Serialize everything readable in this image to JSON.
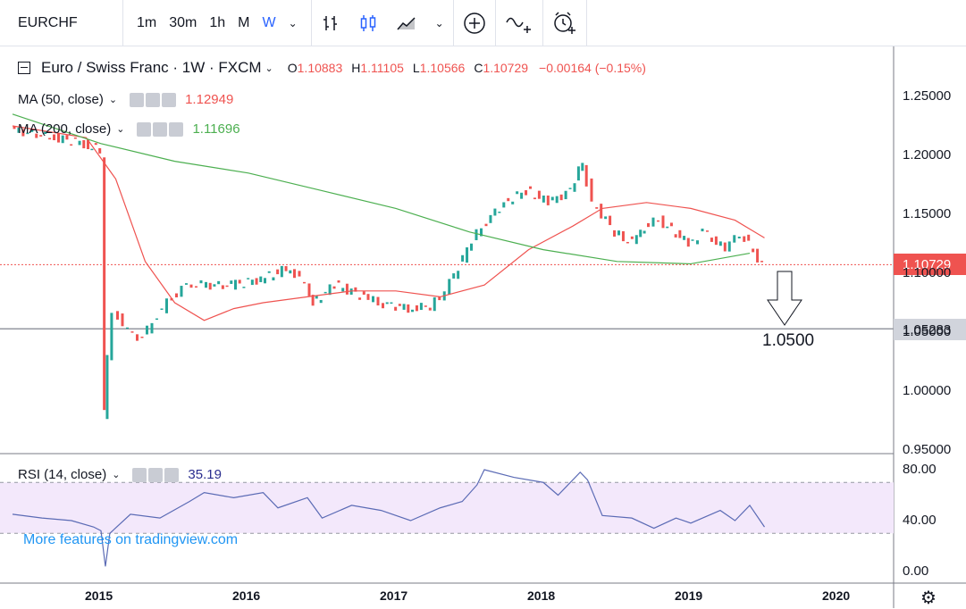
{
  "toolbar": {
    "symbol": "EURCHF",
    "timeframes": [
      "1m",
      "30m",
      "1h",
      "M",
      "W"
    ],
    "active_timeframe": "W"
  },
  "legend": {
    "title": "Euro / Swiss Franc · 1W · FXCM",
    "open": "1.10883",
    "high": "1.11105",
    "low": "1.10566",
    "close": "1.10729",
    "change": "−0.00164 (−0.15%)",
    "ma50_label": "MA (50, close)",
    "ma50_value": "1.12949",
    "ma200_label": "MA (200, close)",
    "ma200_value": "1.11696",
    "rsi_label": "RSI (14, close)",
    "rsi_value": "35.19"
  },
  "promo": "More features on tradingview.com",
  "annotation": "1.0500",
  "price_labels": {
    "current": "1.10729",
    "level": "1.05283"
  },
  "colors": {
    "up": "#26a69a",
    "down": "#ef5350",
    "ma50": "#ef5350",
    "ma200": "#4caf50",
    "rsi": "#5b6bb5",
    "rsi_band": "#f3e8fb"
  },
  "chart_data": [
    {
      "type": "line",
      "title": "Euro / Swiss Franc · 1W · FXCM",
      "ylim": [
        0.95,
        1.28
      ],
      "yticks": [
        "1.25000",
        "1.20000",
        "1.15000",
        "1.10000",
        "1.05000",
        "1.00000",
        "0.95000"
      ],
      "xticks": [
        "2015",
        "2016",
        "2017",
        "2018",
        "2019",
        "2020"
      ],
      "series": [
        {
          "name": "Euro / Swiss Franc",
          "x": [
            2014.4,
            2014.7,
            2014.9,
            2014.98,
            2015.01,
            2015.03,
            2015.06,
            2015.1,
            2015.2,
            2015.3,
            2015.4,
            2015.5,
            2015.6,
            2015.7,
            2015.9,
            2016.1,
            2016.3,
            2016.4,
            2016.45,
            2016.6,
            2016.8,
            2016.9,
            2017.1,
            2017.25,
            2017.35,
            2017.5,
            2017.6,
            2017.75,
            2017.9,
            2018.05,
            2018.2,
            2018.28,
            2018.35,
            2018.5,
            2018.62,
            2018.7,
            2018.8,
            2019.0,
            2019.1,
            2019.25,
            2019.35,
            2019.5
          ],
          "values": [
            1.222,
            1.215,
            1.21,
            1.205,
            1.2,
            0.98,
            1.03,
            1.07,
            1.05,
            1.045,
            1.065,
            1.08,
            1.09,
            1.09,
            1.09,
            1.095,
            1.105,
            1.09,
            1.075,
            1.09,
            1.08,
            1.075,
            1.07,
            1.072,
            1.085,
            1.12,
            1.14,
            1.16,
            1.17,
            1.16,
            1.17,
            1.195,
            1.16,
            1.135,
            1.125,
            1.14,
            1.145,
            1.125,
            1.135,
            1.12,
            1.135,
            1.107
          ]
        },
        {
          "name": "MA (50, close)",
          "x": [
            2014.4,
            2014.9,
            2015.1,
            2015.3,
            2015.5,
            2015.7,
            2015.9,
            2016.1,
            2016.4,
            2016.7,
            2017.0,
            2017.3,
            2017.6,
            2017.9,
            2018.2,
            2018.4,
            2018.7,
            2019.0,
            2019.3,
            2019.5
          ],
          "values": [
            1.225,
            1.215,
            1.18,
            1.11,
            1.075,
            1.06,
            1.07,
            1.075,
            1.08,
            1.085,
            1.085,
            1.08,
            1.09,
            1.12,
            1.14,
            1.155,
            1.16,
            1.155,
            1.145,
            1.13
          ]
        },
        {
          "name": "MA (200, close)",
          "x": [
            2014.4,
            2015.0,
            2015.5,
            2016.0,
            2016.5,
            2017.0,
            2017.5,
            2018.0,
            2018.5,
            2019.0,
            2019.4
          ],
          "values": [
            1.235,
            1.21,
            1.195,
            1.185,
            1.17,
            1.155,
            1.135,
            1.12,
            1.11,
            1.108,
            1.117
          ]
        }
      ]
    },
    {
      "type": "line",
      "title": "RSI (14, close)",
      "ylim": [
        0,
        90
      ],
      "yticks": [
        "80.00",
        "40.00",
        "0.00"
      ],
      "series": [
        {
          "name": "RSI (14, close)",
          "x": [
            2014.4,
            2014.6,
            2014.8,
            2014.95,
            2015.0,
            2015.03,
            2015.06,
            2015.2,
            2015.4,
            2015.6,
            2015.7,
            2015.9,
            2016.1,
            2016.2,
            2016.4,
            2016.5,
            2016.7,
            2016.9,
            2017.1,
            2017.3,
            2017.45,
            2017.55,
            2017.6,
            2017.8,
            2018.0,
            2018.1,
            2018.25,
            2018.3,
            2018.4,
            2018.6,
            2018.75,
            2018.9,
            2019.0,
            2019.2,
            2019.3,
            2019.4,
            2019.5
          ],
          "values": [
            45,
            42,
            40,
            35,
            32,
            4,
            30,
            45,
            42,
            55,
            62,
            58,
            62,
            50,
            58,
            42,
            52,
            48,
            40,
            50,
            55,
            68,
            80,
            74,
            70,
            60,
            78,
            72,
            44,
            42,
            34,
            42,
            38,
            48,
            40,
            52,
            35
          ]
        }
      ]
    }
  ]
}
